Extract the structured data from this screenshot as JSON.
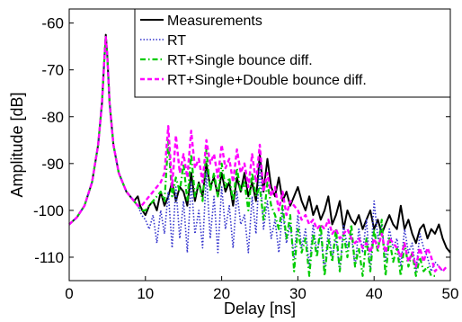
{
  "chart_data": {
    "type": "line",
    "title": "",
    "xlabel": "Delay [ns]",
    "ylabel": "Amplitude [dB]",
    "xlim": [
      0,
      50
    ],
    "ylim": [
      -115,
      -57
    ],
    "xticks": [
      0,
      10,
      20,
      30,
      40,
      50
    ],
    "yticks": [
      -60,
      -70,
      -80,
      -90,
      -100,
      -110
    ],
    "grid": false,
    "legend_position": "top-right",
    "series": [
      {
        "name": "Measurements",
        "color": "#000000",
        "style": "solid",
        "x": [
          0,
          1,
          2,
          3,
          3.8,
          4.3,
          4.6,
          4.8,
          5.0,
          5.3,
          5.8,
          6.5,
          7.5,
          8.5,
          9.0,
          9.3,
          9.6,
          10.0,
          10.5,
          11.0,
          11.5,
          12.0,
          12.5,
          13.0,
          13.5,
          14.0,
          14.5,
          15.0,
          15.5,
          16.0,
          16.5,
          17.0,
          17.5,
          18.0,
          18.5,
          19.0,
          19.5,
          20.0,
          20.5,
          21.0,
          21.5,
          22.0,
          22.5,
          23.0,
          23.5,
          24.0,
          24.5,
          25.0,
          25.5,
          26.0,
          26.5,
          27.0,
          27.5,
          28.0,
          28.5,
          29.0,
          29.5,
          30.0,
          30.5,
          31.0,
          31.5,
          32.0,
          32.5,
          33.0,
          33.5,
          34.0,
          34.5,
          35.0,
          35.5,
          36.0,
          36.5,
          37.0,
          37.5,
          38.0,
          38.5,
          39.0,
          39.5,
          40.0,
          40.5,
          41.0,
          41.5,
          42.0,
          42.5,
          43.0,
          43.5,
          44.0,
          44.5,
          45.0,
          45.5,
          46.0,
          46.5,
          47.0,
          47.5,
          48.0,
          48.5,
          49.0,
          49.5,
          50.0
        ],
        "y": [
          -103,
          -101.5,
          -99,
          -94,
          -86,
          -77,
          -68,
          -62.5,
          -67,
          -77,
          -86,
          -92,
          -96,
          -98,
          -97,
          -99,
          -100,
          -101,
          -99,
          -98,
          -100,
          -96,
          -99,
          -97,
          -94,
          -98,
          -95,
          -96,
          -99,
          -92,
          -98,
          -94,
          -97,
          -90,
          -95,
          -93,
          -97,
          -92,
          -96,
          -94,
          -99,
          -93,
          -96,
          -92,
          -97,
          -94,
          -98,
          -88,
          -96,
          -89,
          -95,
          -97,
          -93,
          -98,
          -96,
          -99,
          -97,
          -95,
          -98,
          -100,
          -97,
          -101,
          -99,
          -102,
          -100,
          -97,
          -103,
          -101,
          -98,
          -104,
          -100,
          -102,
          -103,
          -101,
          -104,
          -102,
          -100,
          -104,
          -102,
          -105,
          -103,
          -101,
          -103,
          -104,
          -99,
          -104,
          -102,
          -105,
          -107,
          -104,
          -103,
          -106,
          -104,
          -105,
          -103,
          -106,
          -108,
          -109
        ]
      },
      {
        "name": "RT",
        "color": "#3333cc",
        "style": "dotted",
        "x": [
          0,
          1,
          2,
          3,
          3.8,
          4.3,
          4.6,
          4.8,
          5.0,
          5.3,
          5.8,
          6.5,
          7.5,
          8.5,
          9.0,
          9.5,
          10.0,
          10.5,
          11.0,
          11.5,
          12.0,
          12.5,
          13.0,
          13.5,
          14.0,
          14.5,
          15.0,
          15.5,
          16.0,
          16.5,
          17.0,
          17.5,
          18.0,
          18.5,
          19.0,
          19.5,
          20.0,
          20.5,
          21.0,
          21.5,
          22.0,
          22.5,
          23.0,
          23.5,
          24.0,
          24.5,
          25.0,
          25.5,
          26.0,
          26.5,
          27.0,
          27.5,
          28.0,
          28.5,
          29.0,
          29.5,
          30.0,
          30.5,
          31.0,
          31.5,
          32.0,
          32.5,
          33.0,
          33.5,
          34.0,
          34.5,
          35.0,
          35.5,
          36.0,
          36.5,
          37.0,
          37.5,
          38.0,
          38.5,
          39.0,
          39.5,
          40.0,
          40.5,
          41.0,
          41.5,
          42.0,
          42.5,
          43.0,
          43.5,
          44.0,
          44.5,
          45.0,
          45.5,
          46.0,
          46.5,
          47.0,
          47.5,
          48.0,
          48.5,
          49.0
        ],
        "y": [
          -103,
          -101.5,
          -99,
          -94,
          -86,
          -77,
          -68,
          -63,
          -67,
          -77,
          -86,
          -92,
          -96,
          -98,
          -99,
          -101,
          -102,
          -104,
          -101,
          -107,
          -100,
          -105,
          -96,
          -108,
          -95,
          -106,
          -98,
          -109,
          -94,
          -105,
          -100,
          -108,
          -92,
          -106,
          -97,
          -109,
          -95,
          -104,
          -99,
          -108,
          -96,
          -103,
          -101,
          -109,
          -97,
          -105,
          -90,
          -104,
          -98,
          -106,
          -102,
          -109,
          -100,
          -107,
          -103,
          -110,
          -101,
          -108,
          -104,
          -112,
          -103,
          -109,
          -105,
          -113,
          -104,
          -110,
          -106,
          -113,
          -103,
          -108,
          -105,
          -112,
          -104,
          -109,
          -102,
          -113,
          -98,
          -106,
          -103,
          -111,
          -104,
          -108,
          -106,
          -112,
          -104,
          -109,
          -107,
          -113,
          -105,
          -108,
          -110,
          -113,
          -111,
          -112,
          -113
        ]
      },
      {
        "name": "RT+Single bounce diff.",
        "color": "#00cc00",
        "style": "dashdot",
        "x": [
          0,
          1,
          2,
          3,
          3.8,
          4.3,
          4.6,
          4.8,
          5.0,
          5.3,
          5.8,
          6.5,
          7.5,
          8.5,
          9.0,
          9.5,
          10.0,
          10.5,
          11.0,
          11.5,
          12.0,
          12.5,
          13.0,
          13.5,
          14.0,
          14.5,
          15.0,
          15.5,
          16.0,
          16.5,
          17.0,
          17.5,
          18.0,
          18.5,
          19.0,
          19.5,
          20.0,
          20.5,
          21.0,
          21.5,
          22.0,
          22.5,
          23.0,
          23.5,
          24.0,
          24.5,
          25.0,
          25.5,
          26.0,
          26.5,
          27.0,
          27.5,
          28.0,
          28.5,
          29.0,
          29.5,
          30.0,
          30.5,
          31.0,
          31.5,
          32.0,
          32.5,
          33.0,
          33.5,
          34.0,
          34.5,
          35.0,
          35.5,
          36.0,
          36.5,
          37.0,
          37.5,
          38.0,
          38.5,
          39.0,
          39.5,
          40.0,
          40.5,
          41.0,
          41.5,
          42.0,
          42.5,
          43.0,
          43.5,
          44.0,
          44.5,
          45.0,
          45.5,
          46.0,
          46.5,
          47.0,
          47.5,
          48.0
        ],
        "y": [
          -103,
          -101.5,
          -99,
          -94,
          -86,
          -77,
          -68,
          -63,
          -67,
          -77,
          -86,
          -92,
          -96,
          -98,
          -99,
          -100,
          -100,
          -99,
          -98,
          -97,
          -96,
          -98,
          -85,
          -97,
          -93,
          -96,
          -90,
          -98,
          -88,
          -97,
          -94,
          -98,
          -87,
          -96,
          -92,
          -97,
          -90,
          -95,
          -93,
          -98,
          -91,
          -96,
          -94,
          -100,
          -92,
          -97,
          -95,
          -102,
          -94,
          -99,
          -101,
          -104,
          -99,
          -106,
          -101,
          -113,
          -104,
          -109,
          -106,
          -114,
          -105,
          -110,
          -103,
          -114,
          -106,
          -111,
          -104,
          -113,
          -105,
          -110,
          -103,
          -112,
          -108,
          -114,
          -106,
          -113,
          -104,
          -109,
          -102,
          -114,
          -106,
          -111,
          -108,
          -114,
          -107,
          -112,
          -109,
          -114,
          -110,
          -113,
          -112,
          -114,
          -114
        ]
      },
      {
        "name": "RT+Single+Double bounce diff.",
        "color": "#ff00ff",
        "style": "dashed",
        "x": [
          0,
          1,
          2,
          3,
          3.8,
          4.3,
          4.6,
          4.8,
          5.0,
          5.3,
          5.8,
          6.5,
          7.5,
          8.5,
          9.0,
          9.5,
          10.0,
          10.5,
          11.0,
          11.5,
          12.0,
          12.5,
          13.0,
          13.5,
          14.0,
          14.5,
          15.0,
          15.5,
          16.0,
          16.5,
          17.0,
          17.5,
          18.0,
          18.5,
          19.0,
          19.5,
          20.0,
          20.5,
          21.0,
          21.5,
          22.0,
          22.5,
          23.0,
          23.5,
          24.0,
          24.5,
          25.0,
          25.5,
          26.0,
          26.5,
          27.0,
          27.5,
          28.0,
          28.5,
          29.0,
          29.5,
          30.0,
          30.5,
          31.0,
          31.5,
          32.0,
          32.5,
          33.0,
          33.5,
          34.0,
          34.5,
          35.0,
          35.5,
          36.0,
          36.5,
          37.0,
          37.5,
          38.0,
          38.5,
          39.0,
          39.5,
          40.0,
          40.5,
          41.0,
          41.5,
          42.0,
          42.5,
          43.0,
          43.5,
          44.0,
          44.5,
          45.0,
          45.5,
          46.0,
          46.5,
          47.0,
          47.5,
          48.0,
          48.5,
          49.0,
          49.5
        ],
        "y": [
          -103,
          -101.5,
          -99,
          -94,
          -86,
          -77,
          -68,
          -63,
          -67,
          -77,
          -86,
          -92,
          -96,
          -98,
          -99,
          -99,
          -98,
          -97,
          -96,
          -95,
          -94,
          -92,
          -82,
          -95,
          -84,
          -92,
          -88,
          -93,
          -83,
          -91,
          -89,
          -94,
          -85,
          -90,
          -88,
          -93,
          -86,
          -91,
          -89,
          -94,
          -87,
          -92,
          -90,
          -95,
          -88,
          -94,
          -86,
          -96,
          -92,
          -97,
          -95,
          -100,
          -96,
          -101,
          -98,
          -99,
          -100,
          -102,
          -101,
          -103,
          -102,
          -104,
          -103,
          -104,
          -102,
          -105,
          -104,
          -106,
          -105,
          -104,
          -106,
          -107,
          -106,
          -108,
          -107,
          -109,
          -106,
          -108,
          -105,
          -109,
          -106,
          -107,
          -108,
          -110,
          -107,
          -111,
          -109,
          -112,
          -108,
          -111,
          -108,
          -110,
          -113,
          -112,
          -113,
          -112
        ]
      }
    ]
  }
}
